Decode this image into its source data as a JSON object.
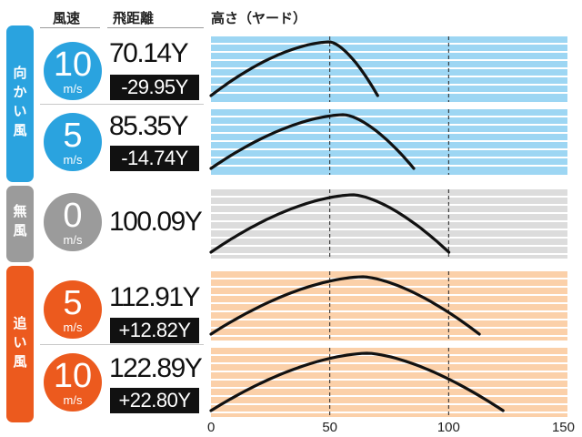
{
  "headers": {
    "wind": "風速",
    "distance": "飛距離",
    "height": "高さ（ヤード）"
  },
  "bands": [
    {
      "id": "headwind",
      "label": [
        "向",
        "か",
        "い",
        "風"
      ],
      "color": "#2aa3df"
    },
    {
      "id": "calm",
      "label": [
        "無",
        "風"
      ],
      "color": "#9b9b9b"
    },
    {
      "id": "tailwind",
      "label": [
        "追",
        "い",
        "風"
      ],
      "color": "#ec5a1e"
    }
  ],
  "rows": [
    {
      "wind": "10",
      "unit": "m/s",
      "distance": "70.14Y",
      "diff": "-29.95Y",
      "band": "headwind"
    },
    {
      "wind": "5",
      "unit": "m/s",
      "distance": "85.35Y",
      "diff": "-14.74Y",
      "band": "headwind"
    },
    {
      "wind": "0",
      "unit": "m/s",
      "distance": "100.09Y",
      "diff": "",
      "band": "calm"
    },
    {
      "wind": "5",
      "unit": "m/s",
      "distance": "112.91Y",
      "diff": "+12.82Y",
      "band": "tailwind"
    },
    {
      "wind": "10",
      "unit": "m/s",
      "distance": "122.89Y",
      "diff": "+22.80Y",
      "band": "tailwind"
    }
  ],
  "colors": {
    "headwind_bg": "#9dd6f3",
    "calm_bg": "#dcdcdc",
    "tailwind_bg": "#fbd0a9",
    "stripe": "#ffffff",
    "curve": "#111111",
    "dashed": "#222222"
  },
  "chart_data": {
    "type": "line",
    "xlim": [
      0,
      150
    ],
    "x_ticks": [
      "0",
      "50",
      "100",
      "150"
    ],
    "reference_lines_x": [
      50,
      100
    ],
    "series": [
      {
        "carry": 70.14,
        "apex_x": 50,
        "apex_y": 1.0
      },
      {
        "carry": 85.35,
        "apex_x": 56,
        "apex_y": 1.0
      },
      {
        "carry": 100.09,
        "apex_x": 60,
        "apex_y": 1.0
      },
      {
        "carry": 112.91,
        "apex_x": 64,
        "apex_y": 1.0
      },
      {
        "carry": 122.89,
        "apex_x": 66,
        "apex_y": 1.0
      }
    ]
  }
}
